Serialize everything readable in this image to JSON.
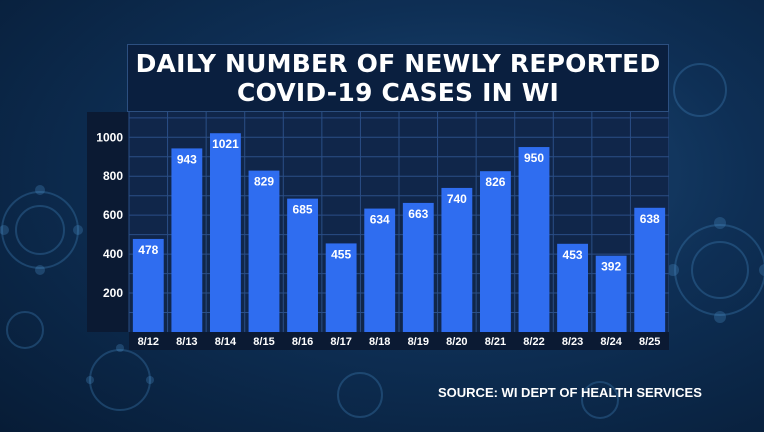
{
  "colors": {
    "bar": "#2f6df0",
    "plot_bg": "#10264a",
    "grid": "#2a4e86",
    "xband": "#0b1a33",
    "yband": "#0b1a33",
    "text": "#ffffff"
  },
  "source_text": "SOURCE: WI DEPT OF HEALTH SERVICES",
  "chart_data": {
    "type": "bar",
    "title": [
      "DAILY NUMBER OF NEWLY REPORTED",
      "COVID-19 CASES IN WI"
    ],
    "categories": [
      "8/12",
      "8/13",
      "8/14",
      "8/15",
      "8/16",
      "8/17",
      "8/18",
      "8/19",
      "8/20",
      "8/21",
      "8/22",
      "8/23",
      "8/24",
      "8/25"
    ],
    "values": [
      478,
      943,
      1021,
      829,
      685,
      455,
      634,
      663,
      740,
      826,
      950,
      453,
      392,
      638
    ],
    "yticks": [
      200,
      400,
      600,
      800,
      1000
    ],
    "ylim": [
      0,
      1130
    ],
    "xlabel": "",
    "ylabel": "",
    "grid": true,
    "legend": "none"
  }
}
